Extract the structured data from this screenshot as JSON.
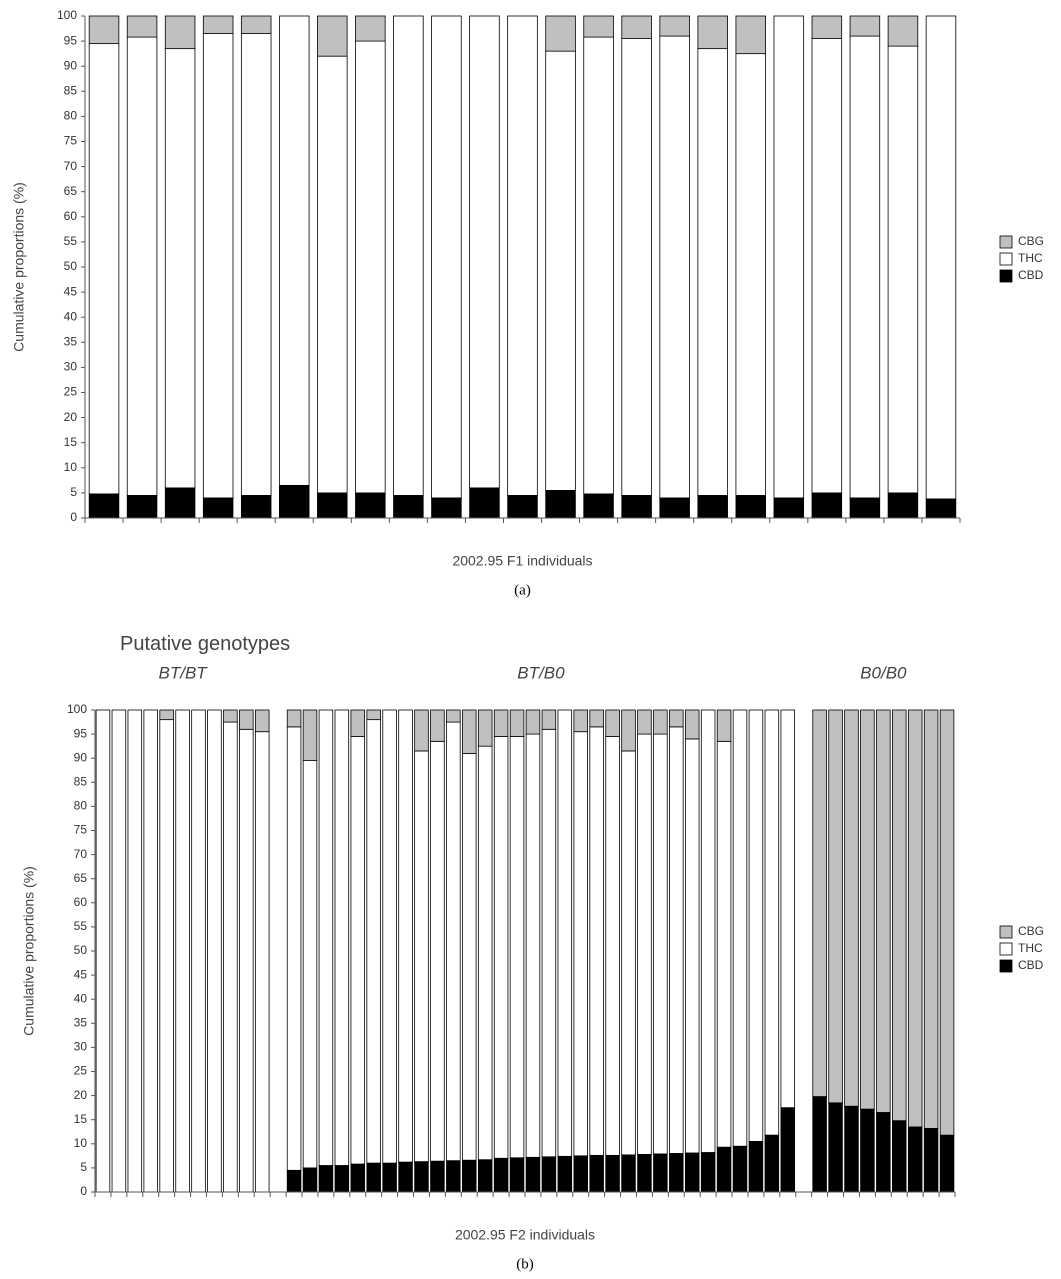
{
  "chart_data": [
    {
      "type": "stacked_bar",
      "ylabel": "Cumulative proportions (%)",
      "xlabel": "2002.95 F1 individuals",
      "caption": "(a)",
      "ylim": [
        0,
        100
      ],
      "yticks": [
        0,
        5,
        10,
        15,
        20,
        25,
        30,
        35,
        40,
        45,
        50,
        55,
        60,
        65,
        70,
        75,
        80,
        85,
        90,
        95,
        100
      ],
      "legend": "right",
      "series": [
        {
          "name": "CBD",
          "color": "#000000",
          "values": [
            4.8,
            4.5,
            6,
            4,
            4.5,
            6.5,
            5,
            5,
            4.5,
            4,
            6,
            4.5,
            5.5,
            4.8,
            4.5,
            4,
            4.5,
            4.5,
            4,
            5,
            4,
            5,
            3.8
          ]
        },
        {
          "name": "THC",
          "color": "#ffffff",
          "values": [
            89.7,
            91.3,
            87.5,
            92.5,
            92,
            93.5,
            87,
            90,
            95.5,
            96,
            94,
            95.5,
            87.5,
            91,
            91,
            92,
            89,
            88,
            96,
            90.5,
            92,
            89,
            96.2
          ]
        },
        {
          "name": "CBG",
          "color": "#c0c0c0",
          "values": [
            5.5,
            4.2,
            6.5,
            3.5,
            3.5,
            0,
            8,
            5,
            0,
            0,
            0,
            0,
            7,
            4.2,
            4.5,
            4,
            6.5,
            7.5,
            0,
            4.5,
            4,
            6,
            0
          ]
        }
      ]
    },
    {
      "type": "stacked_bar",
      "title": "Putative genotypes",
      "ylabel": "Cumulative proportions (%)",
      "xlabel": "2002.95 F2 individuals",
      "caption": "(b)",
      "ylim": [
        0,
        100
      ],
      "yticks": [
        0,
        5,
        10,
        15,
        20,
        25,
        30,
        35,
        40,
        45,
        50,
        55,
        60,
        65,
        70,
        75,
        80,
        85,
        90,
        95,
        100
      ],
      "legend": "right",
      "groups": [
        {
          "label": "BT/BT"
        },
        {
          "label": "BT/B0"
        },
        {
          "label": "B0/B0"
        }
      ],
      "series": [
        {
          "name": "CBD",
          "color": "#000000",
          "values": [
            0,
            0,
            0,
            0,
            0,
            0,
            0,
            0,
            0,
            0,
            0,
            null,
            4.5,
            5,
            5.5,
            5.5,
            5.8,
            6,
            6,
            6.2,
            6.3,
            6.4,
            6.5,
            6.6,
            6.7,
            7,
            7.1,
            7.2,
            7.3,
            7.4,
            7.5,
            7.6,
            7.6,
            7.7,
            7.8,
            7.9,
            8,
            8.1,
            8.2,
            9.3,
            9.5,
            10.5,
            11.8,
            17.5,
            null,
            19.8,
            18.5,
            17.8,
            17.2,
            16.5,
            14.8,
            13.5,
            13.2,
            11.8
          ]
        },
        {
          "name": "THC",
          "color": "#ffffff",
          "values": [
            100,
            100,
            100,
            100,
            98,
            100,
            100,
            100,
            97.5,
            96,
            95.5,
            null,
            92,
            84.5,
            94.5,
            94.5,
            88.7,
            92,
            94,
            93.8,
            85.2,
            87.1,
            91,
            84.4,
            85.8,
            87.5,
            87.4,
            87.8,
            88.7,
            92.6,
            88,
            88.9,
            86.9,
            83.8,
            87.2,
            87.1,
            88.5,
            85.9,
            91.8,
            84.2,
            90.5,
            89.5,
            88.2,
            82.5,
            null,
            0,
            0,
            0,
            0,
            0,
            0,
            0,
            0,
            0
          ]
        },
        {
          "name": "CBG",
          "color": "#c0c0c0",
          "values": [
            0,
            0,
            0,
            0,
            2,
            0,
            0,
            0,
            2.5,
            4,
            4.5,
            null,
            3.5,
            10.5,
            0,
            0,
            5.5,
            2,
            0,
            0,
            8.5,
            6.5,
            2.5,
            9,
            7.5,
            5.5,
            5.5,
            5,
            4,
            0,
            4.5,
            3.5,
            5.5,
            8.5,
            5,
            5,
            3.5,
            6,
            0,
            6.5,
            0,
            0,
            0,
            0,
            null,
            80.2,
            81.5,
            82.2,
            82.8,
            83.5,
            85.2,
            86.5,
            86.8,
            88.2
          ]
        }
      ]
    }
  ]
}
